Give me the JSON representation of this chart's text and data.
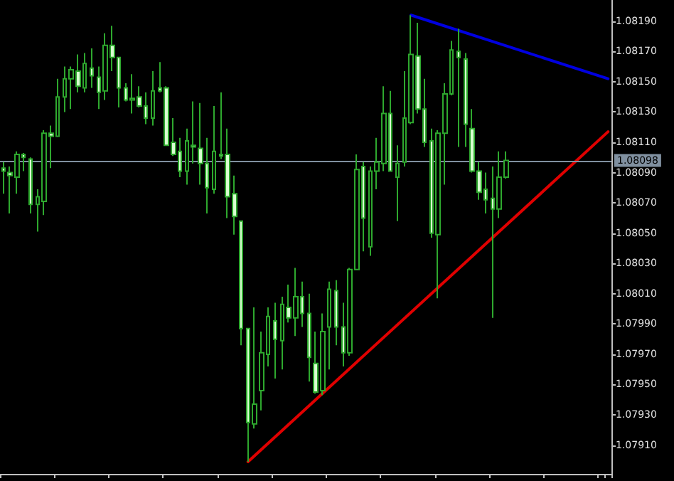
{
  "chart_data": {
    "type": "candlestick",
    "categories": [
      null,
      null,
      null,
      null,
      null,
      null,
      null,
      null,
      null,
      null,
      null,
      null,
      null,
      null,
      null,
      null,
      null,
      null,
      null,
      null,
      null,
      null,
      null,
      null,
      null,
      null,
      null,
      null,
      null,
      null,
      null,
      null,
      null,
      null,
      null,
      null,
      null,
      null,
      null,
      null,
      null,
      null,
      null,
      null,
      null,
      null,
      null,
      null,
      null,
      null,
      null,
      null,
      null,
      null,
      null,
      null,
      null,
      null,
      null,
      null,
      null,
      null,
      null,
      null,
      null,
      null,
      null,
      null,
      null,
      null,
      null,
      null,
      null,
      null,
      null,
      null,
      null,
      null,
      null,
      null,
      null,
      null,
      null,
      null,
      null,
      null,
      null,
      null,
      null,
      null
    ],
    "ohlc": [
      [
        1.08093,
        1.08097,
        1.08076,
        1.08091
      ],
      [
        1.0809,
        1.08094,
        1.08063,
        1.08088
      ],
      [
        1.08087,
        1.08104,
        1.08076,
        1.08102
      ],
      [
        1.08102,
        1.08103,
        1.08091,
        1.081
      ],
      [
        1.08099,
        1.081,
        1.08063,
        1.08069
      ],
      [
        1.08069,
        1.08079,
        1.08051,
        1.08074
      ],
      [
        1.08071,
        1.08118,
        1.08062,
        1.08116
      ],
      [
        1.08116,
        1.08121,
        1.08093,
        1.08114
      ],
      [
        1.08114,
        1.08152,
        1.08114,
        1.0814
      ],
      [
        1.0814,
        1.0816,
        1.0813,
        1.08152
      ],
      [
        1.08152,
        1.0816,
        1.08132,
        1.08158
      ],
      [
        1.08157,
        1.08168,
        1.08143,
        1.08147
      ],
      [
        1.08146,
        1.08169,
        1.08143,
        1.08162
      ],
      [
        1.08159,
        1.08172,
        1.08146,
        1.08154
      ],
      [
        1.08153,
        1.0816,
        1.08132,
        1.08143
      ],
      [
        1.08144,
        1.08182,
        1.08138,
        1.08174
      ],
      [
        1.08174,
        1.08187,
        1.08157,
        1.08166
      ],
      [
        1.08166,
        1.08166,
        1.08133,
        1.08146
      ],
      [
        1.08146,
        1.08149,
        1.08137,
        1.08138
      ],
      [
        1.08138,
        1.08155,
        1.08129,
        1.08139
      ],
      [
        1.0814,
        1.08147,
        1.08133,
        1.08134
      ],
      [
        1.08134,
        1.08143,
        1.08122,
        1.08126
      ],
      [
        1.08126,
        1.08157,
        1.08121,
        1.08144
      ],
      [
        1.08146,
        1.08163,
        1.08143,
        1.08144
      ],
      [
        1.08146,
        1.08147,
        1.08108,
        1.08108
      ],
      [
        1.0811,
        1.08126,
        1.08101,
        1.08102
      ],
      [
        1.08104,
        1.08113,
        1.08087,
        1.08091
      ],
      [
        1.08091,
        1.08119,
        1.08082,
        1.08111
      ],
      [
        1.08108,
        1.08137,
        1.08096,
        1.08107
      ],
      [
        1.08106,
        1.08136,
        1.08082,
        1.08096
      ],
      [
        1.08096,
        1.08113,
        1.08063,
        1.0808
      ],
      [
        1.08079,
        1.08134,
        1.08076,
        1.08104
      ],
      [
        1.08102,
        1.08143,
        1.08099,
        1.08101
      ],
      [
        1.08102,
        1.08119,
        1.0806,
        1.08074
      ],
      [
        1.08076,
        1.08088,
        1.08049,
        1.08061
      ],
      [
        1.08058,
        1.08058,
        1.07976,
        1.07987
      ],
      [
        1.07987,
        1.07987,
        1.07899,
        1.07925
      ],
      [
        1.07924,
        1.08001,
        1.07921,
        1.07937
      ],
      [
        1.07946,
        1.07985,
        1.07933,
        1.07971
      ],
      [
        1.0797,
        1.08001,
        1.07962,
        1.07995
      ],
      [
        1.07992,
        1.08004,
        1.07954,
        1.0798
      ],
      [
        1.07979,
        1.08008,
        1.0796,
        1.08003
      ],
      [
        1.08001,
        1.08016,
        1.07991,
        1.07994
      ],
      [
        1.07994,
        1.08027,
        1.07982,
        1.08008
      ],
      [
        1.08008,
        1.08018,
        1.07988,
        1.07997
      ],
      [
        1.07997,
        1.0801,
        1.07952,
        1.07968
      ],
      [
        1.07964,
        1.07985,
        1.07944,
        1.07945
      ],
      [
        1.07946,
        1.07997,
        1.07943,
        1.07985
      ],
      [
        1.07988,
        1.08018,
        1.0796,
        1.08013
      ],
      [
        1.08012,
        1.08019,
        1.07976,
        1.07988
      ],
      [
        1.07988,
        1.08004,
        1.07962,
        1.07971
      ],
      [
        1.07971,
        1.08027,
        1.07969,
        1.08026
      ],
      [
        1.08026,
        1.08102,
        1.08026,
        1.08092
      ],
      [
        1.08094,
        1.08097,
        1.08038,
        1.0806
      ],
      [
        1.08041,
        1.08094,
        1.08035,
        1.08091
      ],
      [
        1.08091,
        1.08113,
        1.08079,
        1.08097
      ],
      [
        1.08096,
        1.08147,
        1.08091,
        1.08129
      ],
      [
        1.08129,
        1.08144,
        1.08091,
        1.08091
      ],
      [
        1.08087,
        1.08108,
        1.08058,
        1.08096
      ],
      [
        1.08097,
        1.08157,
        1.08094,
        1.08126
      ],
      [
        1.08123,
        1.08194,
        1.08122,
        1.08168
      ],
      [
        1.08167,
        1.08189,
        1.08129,
        1.08132
      ],
      [
        1.08132,
        1.08152,
        1.08107,
        1.0811
      ],
      [
        1.08111,
        1.08119,
        1.08047,
        1.0805
      ],
      [
        1.08049,
        1.08118,
        1.08007,
        1.08116
      ],
      [
        1.08116,
        1.08149,
        1.08082,
        1.08142
      ],
      [
        1.08142,
        1.08177,
        1.08141,
        1.08171
      ],
      [
        1.0817,
        1.08185,
        1.08107,
        1.08166
      ],
      [
        1.08165,
        1.08169,
        1.08107,
        1.08122
      ],
      [
        1.08119,
        1.08132,
        1.0809,
        1.08091
      ],
      [
        1.08091,
        1.08097,
        1.08072,
        1.08077
      ],
      [
        1.08079,
        1.0809,
        1.08063,
        1.08072
      ],
      [
        1.08073,
        1.08094,
        1.07994,
        1.08066
      ],
      [
        1.08066,
        1.08104,
        1.0806,
        1.08087
      ],
      [
        1.08087,
        1.08104,
        1.08086,
        1.08098
      ],
      null,
      null,
      null,
      null,
      null,
      null,
      null,
      null,
      null,
      null,
      null,
      null,
      null,
      null,
      null
    ],
    "series": [
      {
        "type": "line",
        "color": "#e00000",
        "values": [
          null,
          null,
          null,
          null,
          null,
          null,
          null,
          null,
          null,
          null,
          null,
          null,
          null,
          null,
          null,
          null,
          null,
          null,
          null,
          null,
          null,
          null,
          null,
          null,
          null,
          null,
          null,
          null,
          null,
          null,
          null,
          null,
          null,
          null,
          null,
          null,
          1.07899,
          null,
          null,
          null,
          null,
          null,
          null,
          null,
          null,
          null,
          null,
          null,
          null,
          null,
          null,
          null,
          null,
          null,
          null,
          null,
          null,
          null,
          null,
          null,
          null,
          null,
          null,
          null,
          null,
          null,
          null,
          null,
          null,
          null,
          null,
          null,
          null,
          null,
          null,
          null,
          null,
          null,
          null,
          null,
          null,
          null,
          null,
          null,
          null,
          null,
          null,
          null,
          null,
          1.08117
        ]
      },
      {
        "type": "line",
        "color": "#0000e0",
        "values": [
          null,
          null,
          null,
          null,
          null,
          null,
          null,
          null,
          null,
          null,
          null,
          null,
          null,
          null,
          null,
          null,
          null,
          null,
          null,
          null,
          null,
          null,
          null,
          null,
          null,
          null,
          null,
          null,
          null,
          null,
          null,
          null,
          null,
          null,
          null,
          null,
          null,
          null,
          null,
          null,
          null,
          null,
          null,
          null,
          null,
          null,
          null,
          null,
          null,
          null,
          null,
          null,
          null,
          null,
          null,
          null,
          null,
          null,
          null,
          null,
          1.08194,
          null,
          null,
          null,
          null,
          null,
          null,
          null,
          null,
          null,
          null,
          null,
          null,
          null,
          null,
          null,
          null,
          null,
          null,
          null,
          null,
          null,
          null,
          null,
          null,
          null,
          null,
          null,
          null,
          1.08152
        ]
      }
    ],
    "ylim": [
      1.07891,
      1.08204
    ],
    "yticks": [
      {
        "value": 1.0791,
        "label": "1.07910"
      },
      {
        "value": 1.0793,
        "label": "1.07930"
      },
      {
        "value": 1.0795,
        "label": "1.07950"
      },
      {
        "value": 1.0797,
        "label": "1.07970"
      },
      {
        "value": 1.0799,
        "label": "1.07990"
      },
      {
        "value": 1.0801,
        "label": "1.08010"
      },
      {
        "value": 1.0803,
        "label": "1.08030"
      },
      {
        "value": 1.0805,
        "label": "1.08050"
      },
      {
        "value": 1.0807,
        "label": "1.08070"
      },
      {
        "value": 1.0809,
        "label": "1.08090"
      },
      {
        "value": 1.0811,
        "label": "1.08110"
      },
      {
        "value": 1.0813,
        "label": "1.08130"
      },
      {
        "value": 1.0815,
        "label": "1.08150"
      },
      {
        "value": 1.0817,
        "label": "1.08170"
      },
      {
        "value": 1.0819,
        "label": "1.08190"
      }
    ],
    "ref_lines": [
      {
        "axis": "y",
        "value": 1.08098,
        "label": "1.08098",
        "color": "#8090a0"
      }
    ],
    "tick_labels": "y",
    "grid": false
  }
}
